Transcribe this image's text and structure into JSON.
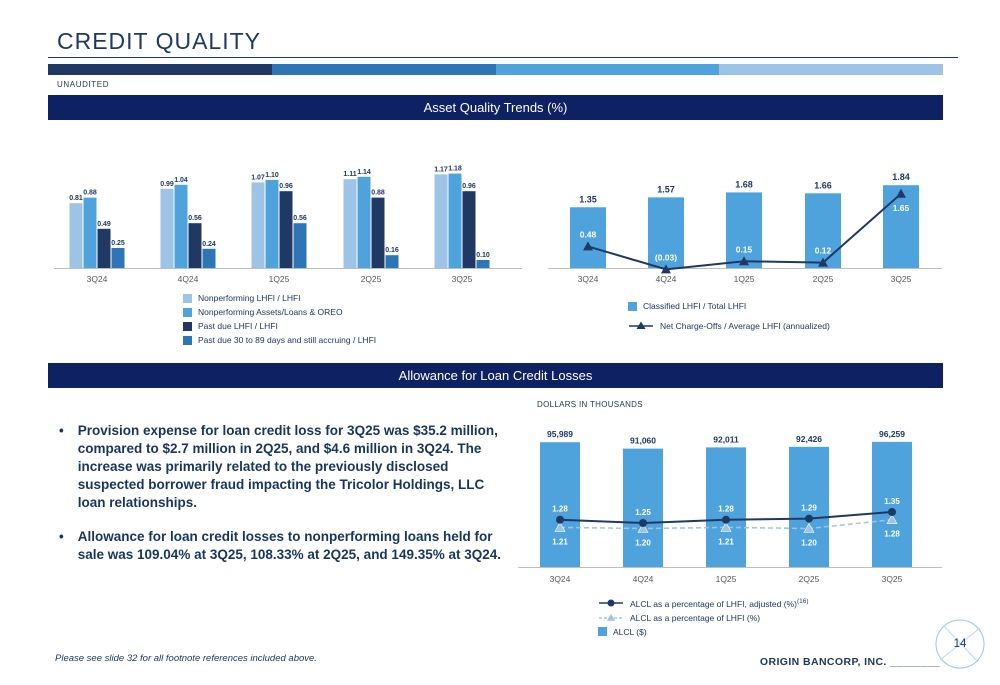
{
  "slide": {
    "title": "CREDIT QUALITY",
    "unaudited": "UNAUDITED",
    "section1_title": "Asset Quality Trends (%)",
    "section2_title": "Allowance for Loan Credit Losses",
    "dollars_note": "DOLLARS IN THOUSANDS",
    "footnote": "Please see slide 32 for all footnote references included above.",
    "company": "ORIGIN BANCORP, INC.",
    "blank_line": "________",
    "page_number": "14"
  },
  "colors": {
    "navy": "#1F3864",
    "banner_navy": "#0E2163",
    "light_blue": "#9DC3E6",
    "medium_blue": "#4FA3DC",
    "accent_blue": "#2E75B6",
    "bar_segments": [
      "#1F3864",
      "#2E75B6",
      "#4FA3DC",
      "#9DC3E6"
    ]
  },
  "bullets": [
    "Provision expense for loan credit loss for 3Q25 was $35.2 million, compared to $2.7 million in 2Q25, and $4.6 million in 3Q24. The increase was primarily related to the previously disclosed suspected borrower fraud impacting the Tricolor Holdings, LLC loan relationships.",
    "Allowance for loan credit losses to nonperforming loans held for sale was 109.04% at 3Q25, 108.33% at 2Q25, and 149.35% at 3Q24."
  ],
  "chart_data": [
    {
      "id": "asset_quality_trends",
      "type": "bar",
      "title": "Asset Quality Trends (%)",
      "categories": [
        "3Q24",
        "4Q24",
        "1Q25",
        "2Q25",
        "3Q25"
      ],
      "series": [
        {
          "name": "Nonperforming LHFI / LHFI",
          "color": "#9DC3E6",
          "values": [
            0.81,
            0.99,
            1.07,
            1.11,
            1.17
          ]
        },
        {
          "name": "Nonperforming Assets/Loans & OREO",
          "color": "#4FA3DC",
          "values": [
            0.88,
            1.04,
            1.1,
            1.14,
            1.18
          ]
        },
        {
          "name": "Past due LHFI / LHFI",
          "color": "#1F3864",
          "values": [
            0.49,
            0.56,
            0.96,
            0.88,
            0.96
          ]
        },
        {
          "name": "Past due 30 to 89 days and still accruing / LHFI",
          "color": "#2E75B6",
          "values": [
            0.25,
            0.24,
            0.56,
            0.16,
            0.1
          ]
        }
      ],
      "ylim": [
        0,
        1.3
      ],
      "grid": false,
      "legend_position": "bottom"
    },
    {
      "id": "classified_and_chargeoffs",
      "type": "bar-line",
      "categories": [
        "3Q24",
        "4Q24",
        "1Q25",
        "2Q25",
        "3Q25"
      ],
      "bar_series": {
        "name": "Classified LHFI / Total LHFI",
        "color": "#4FA3DC",
        "values": [
          1.35,
          1.57,
          1.68,
          1.66,
          1.84
        ]
      },
      "line_series": {
        "name": "Net Charge-Offs / Average LHFI (annualized)",
        "color": "#1F3864",
        "marker": "triangle",
        "values": [
          0.48,
          -0.03,
          0.15,
          0.12,
          1.65
        ],
        "labels": [
          "0.48",
          "(0.03)",
          "0.15",
          "0.12",
          "1.65"
        ]
      },
      "ylim": [
        0,
        2.0
      ],
      "grid": false,
      "legend_position": "bottom"
    },
    {
      "id": "allowance_for_loan_credit_losses",
      "type": "bar-2lines",
      "note": "DOLLARS IN THOUSANDS",
      "categories": [
        "3Q24",
        "4Q24",
        "1Q25",
        "2Q25",
        "3Q25"
      ],
      "bar_series": {
        "name": "ALCL ($)",
        "color": "#4FA3DC",
        "values": [
          95989,
          91060,
          92011,
          92426,
          96259
        ],
        "labels": [
          "95,989",
          "91,060",
          "92,011",
          "92,426",
          "96,259"
        ]
      },
      "line_series": [
        {
          "name": "ALCL as a percentage of LHFI, adjusted (%)",
          "footnote_ref": "(16)",
          "color": "#1F3864",
          "style": "solid",
          "marker": "circle",
          "values": [
            1.28,
            1.25,
            1.28,
            1.29,
            1.35
          ]
        },
        {
          "name": "ALCL as a percentage of LHFI (%)",
          "color": "#9DC3E6",
          "style": "dashed",
          "marker": "triangle",
          "values": [
            1.21,
            1.2,
            1.21,
            1.2,
            1.28
          ]
        }
      ],
      "ylim_bars": [
        0,
        110000
      ],
      "grid": false,
      "legend_position": "bottom"
    }
  ]
}
